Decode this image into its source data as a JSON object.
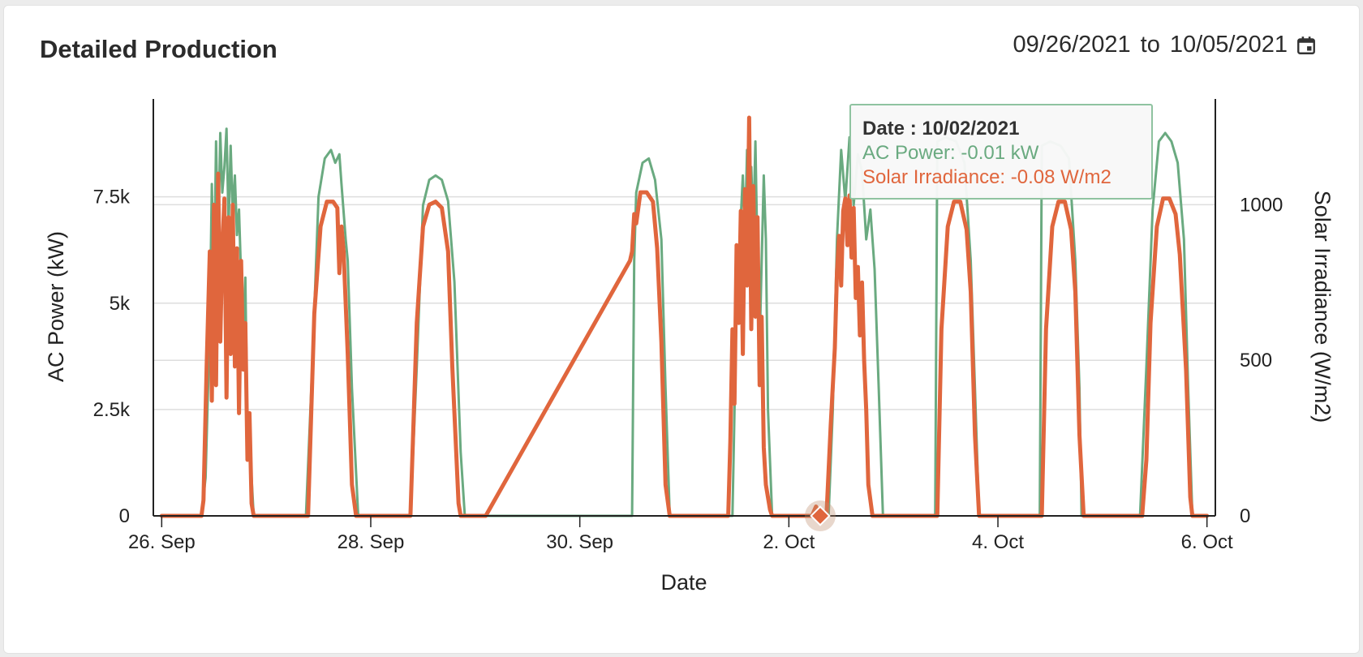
{
  "header": {
    "title": "Detailed Production",
    "date_from": "09/26/2021",
    "date_sep": "to",
    "date_to": "10/05/2021",
    "calendar_icon": "calendar-icon"
  },
  "tooltip": {
    "date_label": "Date : 10/02/2021",
    "ac_label": "AC Power: -0.01 kW",
    "irr_label": "Solar Irradiance: -0.08 W/m2"
  },
  "chart_data": {
    "type": "line",
    "xlabel": "Date",
    "ylabel_left": "AC Power (kW)",
    "ylabel_right": "Solar Irradiance (W/m2)",
    "x_ticks": [
      "26. Sep",
      "28. Sep",
      "30. Sep",
      "2. Oct",
      "4. Oct",
      "6. Oct"
    ],
    "x_domain_days": [
      -0.08,
      10.08
    ],
    "y_left": {
      "ticks": [
        0,
        2500,
        5000,
        7500
      ],
      "tick_labels": [
        "0",
        "2.5k",
        "5k",
        "7.5k"
      ],
      "range": [
        0,
        9800
      ]
    },
    "y_right": {
      "ticks": [
        0,
        500,
        1000
      ],
      "tick_labels": [
        "0",
        "500",
        "1000"
      ],
      "range": [
        0,
        1340
      ]
    },
    "grid": true,
    "colors": {
      "ac_power": "#6aaa80",
      "irradiance": "#e0663d"
    },
    "highlight": {
      "date": "10/02/2021",
      "ac_power_kw": -0.01,
      "irradiance_w_m2": -0.08
    },
    "series": [
      {
        "name": "AC Power",
        "axis": "left",
        "points": [
          [
            0.0,
            0
          ],
          [
            0.38,
            0
          ],
          [
            0.42,
            900
          ],
          [
            0.46,
            4500
          ],
          [
            0.48,
            7800
          ],
          [
            0.5,
            5200
          ],
          [
            0.52,
            8800
          ],
          [
            0.54,
            6300
          ],
          [
            0.56,
            9000
          ],
          [
            0.58,
            7600
          ],
          [
            0.6,
            8200
          ],
          [
            0.62,
            9100
          ],
          [
            0.64,
            6800
          ],
          [
            0.66,
            8700
          ],
          [
            0.68,
            7100
          ],
          [
            0.7,
            8000
          ],
          [
            0.72,
            6600
          ],
          [
            0.74,
            7200
          ],
          [
            0.76,
            5600
          ],
          [
            0.78,
            3900
          ],
          [
            0.8,
            5600
          ],
          [
            0.82,
            2000
          ],
          [
            0.84,
            1800
          ],
          [
            0.88,
            0
          ],
          [
            1.38,
            0
          ],
          [
            1.44,
            3500
          ],
          [
            1.5,
            7500
          ],
          [
            1.56,
            8400
          ],
          [
            1.62,
            8600
          ],
          [
            1.66,
            8300
          ],
          [
            1.7,
            8500
          ],
          [
            1.72,
            7800
          ],
          [
            1.76,
            6500
          ],
          [
            1.78,
            6000
          ],
          [
            1.82,
            3000
          ],
          [
            1.88,
            0
          ],
          [
            2.38,
            0
          ],
          [
            2.44,
            3500
          ],
          [
            2.5,
            7300
          ],
          [
            2.56,
            7900
          ],
          [
            2.62,
            8000
          ],
          [
            2.68,
            7900
          ],
          [
            2.74,
            7400
          ],
          [
            2.8,
            5500
          ],
          [
            2.86,
            1500
          ],
          [
            2.9,
            0
          ],
          [
            4.48,
            0
          ],
          [
            4.5,
            0
          ],
          [
            4.52,
            6000
          ],
          [
            4.54,
            7600
          ],
          [
            4.6,
            8300
          ],
          [
            4.66,
            8400
          ],
          [
            4.72,
            7900
          ],
          [
            4.78,
            6500
          ],
          [
            4.82,
            3000
          ],
          [
            4.86,
            0
          ],
          [
            5.38,
            0
          ],
          [
            5.46,
            0
          ],
          [
            5.5,
            5000
          ],
          [
            5.54,
            7000
          ],
          [
            5.56,
            8000
          ],
          [
            5.58,
            6500
          ],
          [
            5.6,
            8600
          ],
          [
            5.62,
            5500
          ],
          [
            5.64,
            8200
          ],
          [
            5.66,
            6700
          ],
          [
            5.68,
            8800
          ],
          [
            5.7,
            6000
          ],
          [
            5.72,
            4000
          ],
          [
            5.76,
            8000
          ],
          [
            5.78,
            6500
          ],
          [
            5.8,
            2500
          ],
          [
            5.84,
            0
          ],
          [
            6.38,
            0
          ],
          [
            6.42,
            2500
          ],
          [
            6.46,
            6500
          ],
          [
            6.5,
            8600
          ],
          [
            6.54,
            7400
          ],
          [
            6.58,
            8900
          ],
          [
            6.62,
            7300
          ],
          [
            6.66,
            8500
          ],
          [
            6.7,
            8100
          ],
          [
            6.74,
            6500
          ],
          [
            6.78,
            7200
          ],
          [
            6.82,
            5800
          ],
          [
            6.86,
            3000
          ],
          [
            6.9,
            0
          ],
          [
            7.38,
            0
          ],
          [
            7.4,
            0
          ],
          [
            7.42,
            8800
          ],
          [
            7.5,
            8900
          ],
          [
            7.6,
            8800
          ],
          [
            7.68,
            8300
          ],
          [
            7.74,
            6000
          ],
          [
            7.78,
            3000
          ],
          [
            7.82,
            0
          ],
          [
            8.38,
            0
          ],
          [
            8.4,
            0
          ],
          [
            8.42,
            8700
          ],
          [
            8.5,
            8800
          ],
          [
            8.6,
            8700
          ],
          [
            8.68,
            8400
          ],
          [
            8.74,
            6000
          ],
          [
            8.78,
            3000
          ],
          [
            8.8,
            0
          ],
          [
            9.36,
            0
          ],
          [
            9.42,
            3500
          ],
          [
            9.48,
            7200
          ],
          [
            9.54,
            8800
          ],
          [
            9.6,
            9000
          ],
          [
            9.66,
            8800
          ],
          [
            9.72,
            8300
          ],
          [
            9.78,
            6500
          ],
          [
            9.82,
            3000
          ],
          [
            9.86,
            0
          ],
          [
            10.0,
            0
          ]
        ]
      },
      {
        "name": "Solar Irradiance",
        "axis": "right",
        "points": [
          [
            0.0,
            0
          ],
          [
            0.38,
            0
          ],
          [
            0.4,
            50
          ],
          [
            0.43,
            480
          ],
          [
            0.46,
            850
          ],
          [
            0.48,
            370
          ],
          [
            0.5,
            1000
          ],
          [
            0.52,
            420
          ],
          [
            0.54,
            1100
          ],
          [
            0.56,
            560
          ],
          [
            0.58,
            860
          ],
          [
            0.6,
            1020
          ],
          [
            0.62,
            380
          ],
          [
            0.64,
            960
          ],
          [
            0.66,
            520
          ],
          [
            0.68,
            1000
          ],
          [
            0.7,
            480
          ],
          [
            0.72,
            860
          ],
          [
            0.74,
            330
          ],
          [
            0.76,
            820
          ],
          [
            0.78,
            470
          ],
          [
            0.8,
            620
          ],
          [
            0.82,
            180
          ],
          [
            0.84,
            330
          ],
          [
            0.86,
            40
          ],
          [
            0.88,
            0
          ],
          [
            1.38,
            0
          ],
          [
            1.4,
            0
          ],
          [
            1.46,
            650
          ],
          [
            1.52,
            930
          ],
          [
            1.58,
            1010
          ],
          [
            1.64,
            1010
          ],
          [
            1.68,
            990
          ],
          [
            1.7,
            780
          ],
          [
            1.72,
            930
          ],
          [
            1.74,
            850
          ],
          [
            1.78,
            520
          ],
          [
            1.82,
            100
          ],
          [
            1.86,
            0
          ],
          [
            2.38,
            0
          ],
          [
            2.44,
            620
          ],
          [
            2.5,
            930
          ],
          [
            2.56,
            1000
          ],
          [
            2.62,
            1010
          ],
          [
            2.68,
            990
          ],
          [
            2.74,
            850
          ],
          [
            2.78,
            480
          ],
          [
            2.84,
            40
          ],
          [
            2.86,
            0
          ],
          [
            3.02,
            0
          ],
          [
            3.1,
            0
          ],
          [
            4.48,
            820
          ],
          [
            4.5,
            850
          ],
          [
            4.52,
            970
          ],
          [
            4.54,
            940
          ],
          [
            4.58,
            1040
          ],
          [
            4.64,
            1040
          ],
          [
            4.7,
            1010
          ],
          [
            4.74,
            860
          ],
          [
            4.78,
            560
          ],
          [
            4.82,
            100
          ],
          [
            4.86,
            0
          ],
          [
            5.38,
            0
          ],
          [
            5.42,
            0
          ],
          [
            5.44,
            240
          ],
          [
            5.46,
            600
          ],
          [
            5.48,
            360
          ],
          [
            5.5,
            870
          ],
          [
            5.52,
            620
          ],
          [
            5.54,
            980
          ],
          [
            5.56,
            520
          ],
          [
            5.58,
            1050
          ],
          [
            5.6,
            740
          ],
          [
            5.62,
            1280
          ],
          [
            5.64,
            600
          ],
          [
            5.66,
            1060
          ],
          [
            5.68,
            640
          ],
          [
            5.7,
            960
          ],
          [
            5.72,
            420
          ],
          [
            5.74,
            640
          ],
          [
            5.76,
            220
          ],
          [
            5.78,
            100
          ],
          [
            5.82,
            20
          ],
          [
            5.84,
            0
          ],
          [
            6.18,
            0
          ],
          [
            6.22,
            0
          ],
          [
            6.26,
            30
          ],
          [
            6.3,
            -0.08
          ],
          [
            6.34,
            0
          ],
          [
            6.36,
            0
          ],
          [
            6.4,
            290
          ],
          [
            6.44,
            540
          ],
          [
            6.46,
            780
          ],
          [
            6.48,
            900
          ],
          [
            6.5,
            740
          ],
          [
            6.52,
            980
          ],
          [
            6.54,
            1020
          ],
          [
            6.56,
            870
          ],
          [
            6.58,
            1030
          ],
          [
            6.6,
            830
          ],
          [
            6.62,
            990
          ],
          [
            6.64,
            700
          ],
          [
            6.66,
            800
          ],
          [
            6.68,
            580
          ],
          [
            6.7,
            750
          ],
          [
            6.72,
            500
          ],
          [
            6.74,
            340
          ],
          [
            6.76,
            100
          ],
          [
            6.8,
            0
          ],
          [
            7.38,
            0
          ],
          [
            7.42,
            0
          ],
          [
            7.46,
            600
          ],
          [
            7.52,
            930
          ],
          [
            7.58,
            1010
          ],
          [
            7.64,
            1010
          ],
          [
            7.7,
            920
          ],
          [
            7.74,
            720
          ],
          [
            7.78,
            260
          ],
          [
            7.82,
            0
          ],
          [
            8.38,
            0
          ],
          [
            8.42,
            0
          ],
          [
            8.46,
            600
          ],
          [
            8.52,
            930
          ],
          [
            8.58,
            1010
          ],
          [
            8.64,
            1010
          ],
          [
            8.7,
            920
          ],
          [
            8.74,
            720
          ],
          [
            8.78,
            260
          ],
          [
            8.82,
            0
          ],
          [
            9.38,
            0
          ],
          [
            9.42,
            180
          ],
          [
            9.46,
            620
          ],
          [
            9.52,
            930
          ],
          [
            9.58,
            1020
          ],
          [
            9.64,
            1020
          ],
          [
            9.7,
            970
          ],
          [
            9.74,
            840
          ],
          [
            9.8,
            470
          ],
          [
            9.84,
            60
          ],
          [
            9.86,
            0
          ],
          [
            10.0,
            0
          ]
        ]
      }
    ]
  }
}
